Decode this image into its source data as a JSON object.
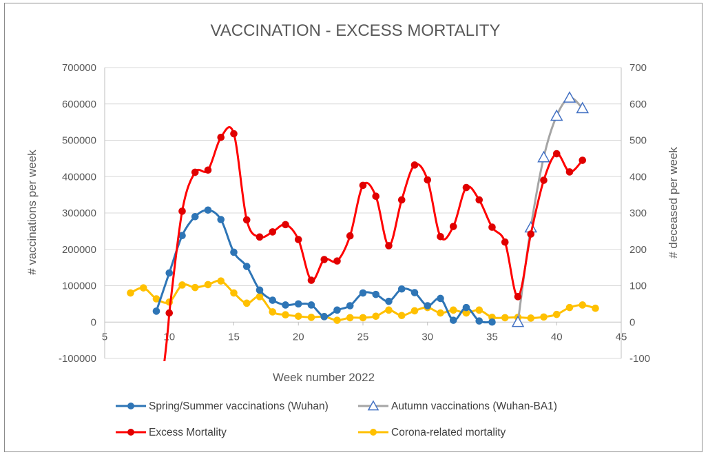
{
  "chart_data": {
    "type": "line",
    "title": "VACCINATION - EXCESS MORTALITY",
    "xlabel": "Week number 2022",
    "ylabel_left": "# vaccinations per week",
    "ylabel_right": "# deceased per week",
    "xlim": [
      5,
      45
    ],
    "x_ticks": [
      5,
      10,
      15,
      20,
      25,
      30,
      35,
      40,
      45
    ],
    "ylim_left": [
      -100000,
      700000
    ],
    "y_ticks_left": [
      -100000,
      0,
      100000,
      200000,
      300000,
      400000,
      500000,
      600000,
      700000
    ],
    "ylim_right": [
      -100,
      700
    ],
    "y_ticks_right": [
      -100,
      0,
      100,
      200,
      300,
      400,
      500,
      600,
      700
    ],
    "grid": true,
    "legend_position": "bottom",
    "series": [
      {
        "name": "Spring/Summer vaccinations (Wuhan)",
        "axis": "left",
        "color": "#2e75b6",
        "marker": "circle",
        "x": [
          9,
          10,
          11,
          12,
          13,
          14,
          15,
          16,
          17,
          18,
          19,
          20,
          21,
          22,
          23,
          24,
          25,
          26,
          27,
          28,
          29,
          30,
          31,
          32,
          33,
          34,
          35
        ],
        "values": [
          30000,
          135000,
          238000,
          290000,
          308000,
          282000,
          192000,
          153000,
          88000,
          60000,
          47000,
          50000,
          47000,
          15000,
          33000,
          45000,
          80000,
          76000,
          57000,
          91000,
          81000,
          45000,
          65000,
          5000,
          40000,
          3000,
          0
        ]
      },
      {
        "name": "Autumn vaccinations (Wuhan-BA1)",
        "axis": "left",
        "color": "#a5a5a5",
        "marker_color": "#4472c4",
        "marker": "triangle-open",
        "x": [
          37,
          38,
          39,
          40,
          41,
          42
        ],
        "values": [
          0,
          260000,
          453000,
          567000,
          617000,
          588000
        ]
      },
      {
        "name": "Excess Mortality",
        "axis": "right",
        "color": "#ff0000",
        "marker_color": "#e00000",
        "marker": "circle",
        "x": [
          10,
          11,
          12,
          13,
          14,
          15,
          16,
          17,
          18,
          19,
          20,
          21,
          22,
          23,
          24,
          25,
          26,
          27,
          28,
          29,
          30,
          31,
          32,
          33,
          34,
          35,
          36,
          37,
          38,
          39,
          40,
          41,
          42
        ],
        "values": [
          25,
          305,
          412,
          418,
          508,
          518,
          281,
          234,
          248,
          268,
          227,
          115,
          172,
          168,
          237,
          376,
          346,
          210,
          336,
          432,
          391,
          235,
          263,
          370,
          336,
          261,
          220,
          70,
          242,
          390,
          463,
          413,
          445
        ]
      },
      {
        "name": "Corona-related mortality",
        "axis": "right",
        "color": "#ffc000",
        "marker": "circle",
        "x": [
          7,
          8,
          9,
          10,
          11,
          12,
          13,
          14,
          15,
          16,
          17,
          18,
          19,
          20,
          21,
          22,
          23,
          24,
          25,
          26,
          27,
          28,
          29,
          30,
          31,
          32,
          33,
          34,
          35,
          36,
          37,
          38,
          39,
          40,
          41,
          42,
          43
        ],
        "values": [
          80,
          94,
          64,
          55,
          102,
          95,
          103,
          113,
          80,
          52,
          70,
          28,
          20,
          16,
          13,
          15,
          5,
          12,
          12,
          16,
          33,
          18,
          31,
          40,
          25,
          33,
          25,
          33,
          13,
          12,
          13,
          11,
          14,
          21,
          40,
          47,
          38
        ]
      }
    ]
  }
}
